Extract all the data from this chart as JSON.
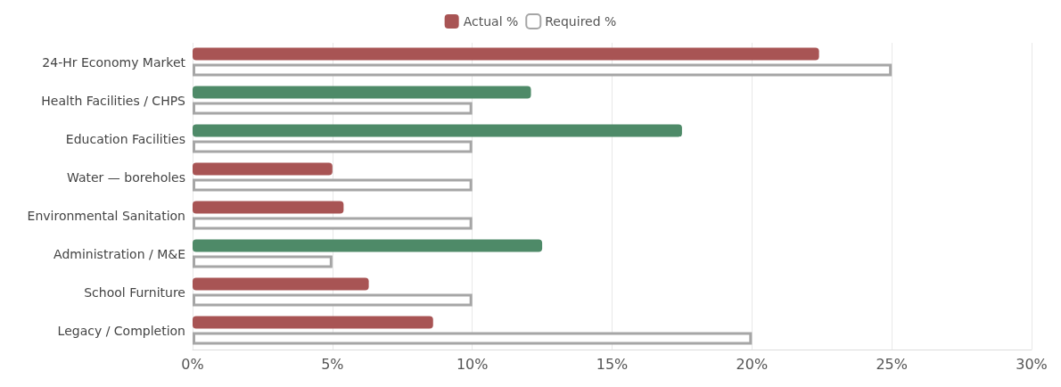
{
  "chart_data": {
    "type": "bar",
    "orientation": "horizontal",
    "categories": [
      "24-Hr Economy Market",
      "Health Facilities / CHPS",
      "Education Facilities",
      "Water — boreholes",
      "Environmental Sanitation",
      "Administration / M&E",
      "School Furniture",
      "Legacy / Completion"
    ],
    "series": [
      {
        "name": "Actual %",
        "color": "#a85454",
        "colors": [
          "#a85454",
          "#4e8a68",
          "#4e8a68",
          "#a85454",
          "#a85454",
          "#4e8a68",
          "#a85454",
          "#a85454"
        ],
        "values": [
          22.4,
          12.1,
          17.5,
          5.0,
          5.4,
          12.5,
          6.3,
          8.6
        ]
      },
      {
        "name": "Required %",
        "color": "#a6a6a6",
        "values": [
          25,
          10,
          10,
          10,
          10,
          5,
          10,
          20
        ]
      }
    ],
    "xlim": [
      0,
      30
    ],
    "xticks": [
      {
        "value": 0,
        "label": "0%"
      },
      {
        "value": 5,
        "label": "5%"
      },
      {
        "value": 10,
        "label": "10%"
      },
      {
        "value": 15,
        "label": "15%"
      },
      {
        "value": 20,
        "label": "20%"
      },
      {
        "value": 25,
        "label": "25%"
      },
      {
        "value": 30,
        "label": "30%"
      }
    ],
    "grid": "x",
    "legend": "top"
  }
}
